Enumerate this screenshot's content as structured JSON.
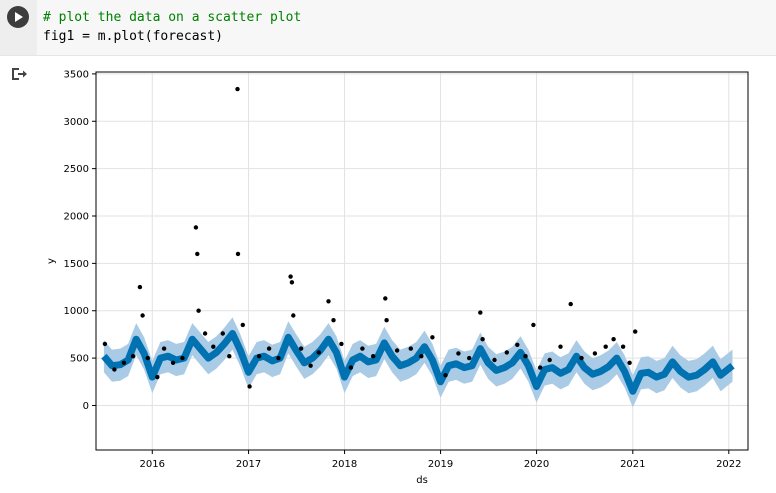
{
  "code_cell": {
    "lines": [
      {
        "text": "# plot the data on a scatter plot",
        "kind": "comment"
      },
      {
        "text": "fig1 = m.plot(forecast)",
        "kind": "code"
      }
    ]
  },
  "icons": {
    "run": "run-cell-icon",
    "output": "output-redirect-icon"
  },
  "colors": {
    "forecast_line": "#0072B2",
    "uncertainty_band": "#a9cbe6",
    "observed_points": "#000000",
    "grid": "#e2e2e2"
  },
  "chart_data": {
    "type": "scatter",
    "xlabel": "ds",
    "ylabel": "y",
    "xlim": [
      "2015-06-01",
      "2022-03-15"
    ],
    "ylim": [
      -470,
      3520
    ],
    "xticks": [
      "2016",
      "2017",
      "2018",
      "2019",
      "2020",
      "2021",
      "2022"
    ],
    "yticks": [
      0,
      500,
      1000,
      1500,
      2000,
      2500,
      3000,
      3500
    ],
    "grid": true,
    "series": [
      {
        "kind": "forecast_line",
        "x": [
          "2015-07-01",
          "2015-08-01",
          "2015-09-01",
          "2015-10-01",
          "2015-11-01",
          "2015-12-01",
          "2016-01-01",
          "2016-02-01",
          "2016-03-01",
          "2016-04-01",
          "2016-05-01",
          "2016-06-01",
          "2016-07-01",
          "2016-08-01",
          "2016-09-01",
          "2016-10-01",
          "2016-11-01",
          "2016-12-01",
          "2017-01-01",
          "2017-02-01",
          "2017-03-01",
          "2017-04-01",
          "2017-05-01",
          "2017-06-01",
          "2017-07-01",
          "2017-08-01",
          "2017-09-01",
          "2017-10-01",
          "2017-11-01",
          "2017-12-01",
          "2018-01-01",
          "2018-02-01",
          "2018-03-01",
          "2018-04-01",
          "2018-05-01",
          "2018-06-01",
          "2018-07-01",
          "2018-08-01",
          "2018-09-01",
          "2018-10-01",
          "2018-11-01",
          "2018-12-01",
          "2019-01-01",
          "2019-02-01",
          "2019-03-01",
          "2019-04-01",
          "2019-05-01",
          "2019-06-01",
          "2019-07-01",
          "2019-08-01",
          "2019-09-01",
          "2019-10-01",
          "2019-11-01",
          "2019-12-01",
          "2020-01-01",
          "2020-02-01",
          "2020-03-01",
          "2020-04-01",
          "2020-05-01",
          "2020-06-01",
          "2020-07-01",
          "2020-08-01",
          "2020-09-01",
          "2020-10-01",
          "2020-11-01",
          "2020-12-01",
          "2021-01-01",
          "2021-02-01",
          "2021-03-01",
          "2021-04-01",
          "2021-05-01",
          "2021-06-01",
          "2021-07-01",
          "2021-08-01",
          "2021-09-01",
          "2021-10-01",
          "2021-11-01",
          "2021-12-01",
          "2022-01-15"
        ],
        "y": [
          520,
          420,
          430,
          480,
          700,
          550,
          300,
          500,
          520,
          480,
          500,
          700,
          600,
          500,
          560,
          650,
          760,
          580,
          350,
          500,
          520,
          470,
          500,
          720,
          580,
          450,
          500,
          580,
          700,
          560,
          300,
          480,
          520,
          460,
          480,
          660,
          520,
          420,
          450,
          500,
          620,
          480,
          250,
          420,
          440,
          400,
          420,
          600,
          450,
          370,
          400,
          450,
          560,
          420,
          200,
          380,
          400,
          340,
          380,
          520,
          400,
          330,
          360,
          410,
          500,
          360,
          150,
          340,
          350,
          300,
          330,
          460,
          360,
          300,
          320,
          380,
          460,
          320,
          420
        ],
        "band": 170
      },
      {
        "kind": "observed_points",
        "x": [
          "2015-07-05",
          "2015-08-10",
          "2015-09-15",
          "2015-10-20",
          "2015-11-15",
          "2015-11-25",
          "2015-12-15",
          "2016-01-20",
          "2016-02-15",
          "2016-03-20",
          "2016-04-25",
          "2016-06-15",
          "2016-06-20",
          "2016-06-25",
          "2016-07-20",
          "2016-08-20",
          "2016-09-25",
          "2016-10-20",
          "2016-11-20",
          "2016-11-22",
          "2016-12-10",
          "2017-01-05",
          "2017-02-10",
          "2017-03-20",
          "2017-04-25",
          "2017-06-10",
          "2017-06-15",
          "2017-06-20",
          "2017-07-20",
          "2017-08-25",
          "2017-09-25",
          "2017-11-01",
          "2017-11-20",
          "2017-12-20",
          "2018-01-25",
          "2018-03-10",
          "2018-04-20",
          "2018-06-05",
          "2018-06-10",
          "2018-07-20",
          "2018-09-10",
          "2018-10-20",
          "2018-12-01",
          "2019-01-20",
          "2019-03-10",
          "2019-04-20",
          "2019-06-01",
          "2019-06-10",
          "2019-07-25",
          "2019-09-10",
          "2019-10-20",
          "2019-11-20",
          "2019-12-20",
          "2020-01-15",
          "2020-02-20",
          "2020-04-01",
          "2020-05-10",
          "2020-06-20",
          "2020-08-10",
          "2020-09-20",
          "2020-10-20",
          "2020-11-25",
          "2020-12-20",
          "2021-01-10"
        ],
        "y": [
          650,
          380,
          450,
          520,
          1250,
          950,
          500,
          300,
          600,
          450,
          500,
          1880,
          1600,
          1000,
          760,
          620,
          760,
          520,
          3340,
          1600,
          850,
          200,
          520,
          600,
          500,
          1360,
          1300,
          950,
          600,
          420,
          560,
          1100,
          900,
          650,
          400,
          600,
          520,
          1130,
          900,
          580,
          600,
          520,
          720,
          320,
          550,
          500,
          980,
          700,
          480,
          560,
          640,
          520,
          850,
          400,
          480,
          620,
          1070,
          500,
          550,
          620,
          700,
          620,
          450,
          780
        ]
      }
    ]
  }
}
